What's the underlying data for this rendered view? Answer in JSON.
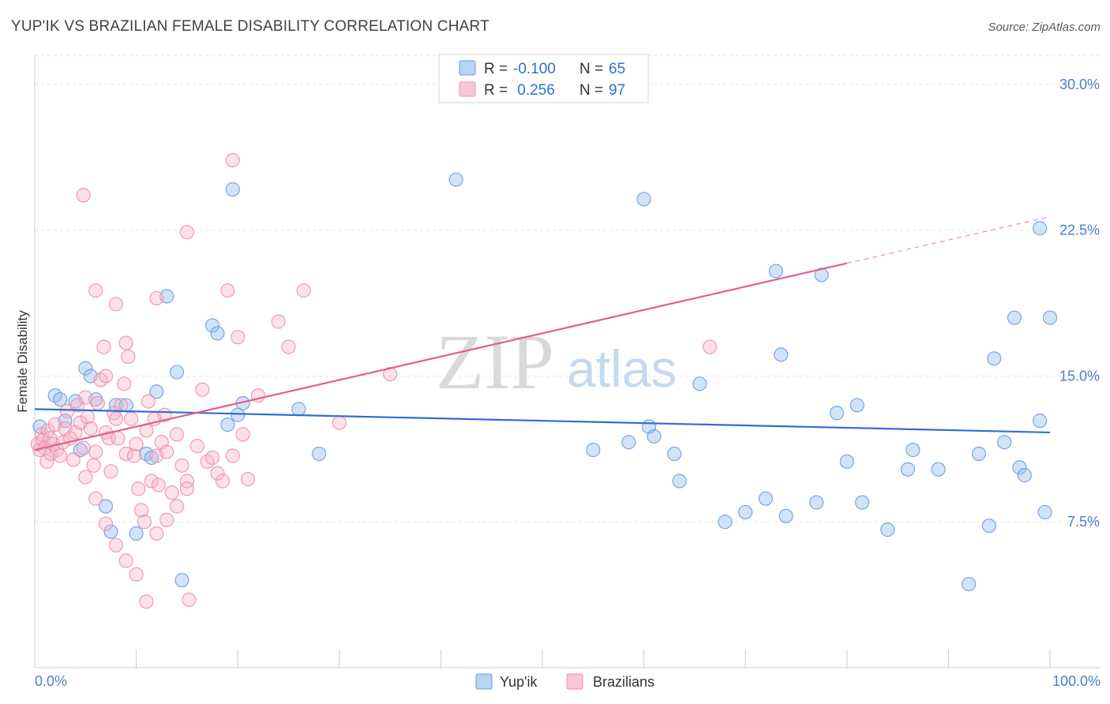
{
  "chart_data": {
    "type": "scatter",
    "title": "YUP'IK VS BRAZILIAN FEMALE DISABILITY CORRELATION CHART",
    "source": "Source: ZipAtlas.com",
    "xlabel": "",
    "ylabel": "Female Disability",
    "xlim": [
      0,
      100
    ],
    "ylim": [
      0,
      31.5
    ],
    "x_tick_labels": [
      "0.0%",
      "100.0%"
    ],
    "y_ticks": [
      7.5,
      15.0,
      22.5,
      30.0
    ],
    "y_tick_labels": [
      "7.5%",
      "15.0%",
      "22.5%",
      "30.0%"
    ],
    "watermark": {
      "zip": "ZIP",
      "atlas": "atlas"
    },
    "legend": {
      "rows": [
        {
          "r_label": "R = ",
          "r_value": "-0.100",
          "n_label": "N = ",
          "n_value": "65"
        },
        {
          "r_label": "R = ",
          "r_value": " 0.256",
          "n_label": "N = ",
          "n_value": "97"
        }
      ]
    },
    "series": [
      {
        "name": "Yup'ik",
        "color": "#8fb8ec",
        "stroke": "#6a9ee0",
        "line_color": "#2f6fd0",
        "trend": {
          "x0": 0,
          "y0": 13.3,
          "x1": 100,
          "y1": 12.1
        },
        "points": [
          [
            0.5,
            12.4
          ],
          [
            2,
            14
          ],
          [
            2.5,
            13.8
          ],
          [
            3,
            12.7
          ],
          [
            4,
            13.7
          ],
          [
            5,
            15.4
          ],
          [
            4.5,
            11.2
          ],
          [
            5.5,
            15
          ],
          [
            6,
            13.8
          ],
          [
            7,
            8.3
          ],
          [
            7.5,
            7
          ],
          [
            8,
            13.5
          ],
          [
            9,
            13.5
          ],
          [
            10,
            6.9
          ],
          [
            11,
            11
          ],
          [
            11.5,
            10.8
          ],
          [
            12,
            14.2
          ],
          [
            13,
            19.1
          ],
          [
            14,
            15.2
          ],
          [
            14.5,
            4.5
          ],
          [
            17.5,
            17.6
          ],
          [
            18,
            17.2
          ],
          [
            19,
            12.5
          ],
          [
            20,
            13
          ],
          [
            20.5,
            13.6
          ],
          [
            19.5,
            24.6
          ],
          [
            26,
            13.3
          ],
          [
            28,
            11
          ],
          [
            41.5,
            25.1
          ],
          [
            55,
            11.2
          ],
          [
            58.5,
            11.6
          ],
          [
            60,
            24.1
          ],
          [
            60.5,
            12.4
          ],
          [
            61,
            11.9
          ],
          [
            63,
            11
          ],
          [
            63.5,
            9.6
          ],
          [
            65.5,
            14.6
          ],
          [
            68,
            7.5
          ],
          [
            70,
            8
          ],
          [
            72,
            8.7
          ],
          [
            73,
            20.4
          ],
          [
            73.5,
            16.1
          ],
          [
            74,
            7.8
          ],
          [
            77,
            8.5
          ],
          [
            77.5,
            20.2
          ],
          [
            79,
            13.1
          ],
          [
            80,
            10.6
          ],
          [
            81,
            13.5
          ],
          [
            81.5,
            8.5
          ],
          [
            84,
            7.1
          ],
          [
            86,
            10.2
          ],
          [
            86.5,
            11.2
          ],
          [
            89,
            10.2
          ],
          [
            92,
            4.3
          ],
          [
            93,
            11
          ],
          [
            94,
            7.3
          ],
          [
            94.5,
            15.9
          ],
          [
            95.5,
            11.6
          ],
          [
            96.5,
            18
          ],
          [
            97,
            10.3
          ],
          [
            97.5,
            9.9
          ],
          [
            99,
            12.7
          ],
          [
            99.5,
            8
          ],
          [
            100,
            18
          ],
          [
            99,
            22.6
          ]
        ]
      },
      {
        "name": "Brazilians",
        "color": "#f6b3c8",
        "stroke": "#ef8fad",
        "line_color": "#e0608e",
        "trend": {
          "x0": 0,
          "y0": 11.2,
          "x1": 80,
          "y1": 20.8
        },
        "trend_dashed": {
          "x0": 80,
          "y0": 20.8,
          "x1": 100,
          "y1": 23.2
        },
        "points": [
          [
            0.3,
            11.5
          ],
          [
            0.5,
            11.2
          ],
          [
            0.7,
            12
          ],
          [
            0.8,
            11.7
          ],
          [
            1,
            11.3
          ],
          [
            1.2,
            10.6
          ],
          [
            1.3,
            12.2
          ],
          [
            1.5,
            11.8
          ],
          [
            1.6,
            11
          ],
          [
            1.8,
            11.5
          ],
          [
            2,
            12.5
          ],
          [
            2.2,
            11.2
          ],
          [
            2.5,
            10.9
          ],
          [
            2.8,
            11.6
          ],
          [
            3,
            12.3
          ],
          [
            3.2,
            13.2
          ],
          [
            3.5,
            11.8
          ],
          [
            3.8,
            10.7
          ],
          [
            4,
            12.1
          ],
          [
            4.2,
            13.5
          ],
          [
            4.5,
            12.6
          ],
          [
            4.8,
            11.3
          ],
          [
            5,
            13.9
          ],
          [
            5.2,
            12.9
          ],
          [
            5.5,
            12.3
          ],
          [
            5.8,
            10.4
          ],
          [
            6,
            11.1
          ],
          [
            6.2,
            13.6
          ],
          [
            6.5,
            14.8
          ],
          [
            6.8,
            16.5
          ],
          [
            7,
            12.1
          ],
          [
            7.3,
            11.8
          ],
          [
            7.5,
            10.1
          ],
          [
            7.8,
            13.1
          ],
          [
            8,
            12.8
          ],
          [
            8.2,
            11.8
          ],
          [
            8.5,
            13.5
          ],
          [
            8.8,
            14.6
          ],
          [
            9,
            11
          ],
          [
            9.2,
            16
          ],
          [
            9.5,
            12.8
          ],
          [
            9.8,
            10.9
          ],
          [
            10,
            11.5
          ],
          [
            10.2,
            9.2
          ],
          [
            10.5,
            8.1
          ],
          [
            10.8,
            7.5
          ],
          [
            11,
            12.2
          ],
          [
            11.2,
            13.7
          ],
          [
            11.5,
            9.6
          ],
          [
            11.8,
            12.8
          ],
          [
            12,
            10.9
          ],
          [
            12.2,
            9.4
          ],
          [
            12.5,
            11.6
          ],
          [
            12.8,
            13
          ],
          [
            13,
            11.1
          ],
          [
            13.5,
            9
          ],
          [
            14,
            12
          ],
          [
            14.5,
            10.4
          ],
          [
            15,
            9.6
          ],
          [
            15.2,
            3.5
          ],
          [
            16,
            11.4
          ],
          [
            16.5,
            14.3
          ],
          [
            17,
            10.6
          ],
          [
            17.5,
            10.8
          ],
          [
            18,
            10
          ],
          [
            18.5,
            9.6
          ],
          [
            19,
            19.4
          ],
          [
            19.5,
            10.9
          ],
          [
            20,
            17
          ],
          [
            20.5,
            12
          ],
          [
            22,
            14
          ],
          [
            24,
            17.8
          ],
          [
            25,
            16.5
          ],
          [
            26.5,
            19.4
          ],
          [
            30,
            12.6
          ],
          [
            35,
            15.1
          ],
          [
            4.8,
            24.3
          ],
          [
            6,
            19.4
          ],
          [
            8,
            18.7
          ],
          [
            9,
            16.7
          ],
          [
            12,
            19
          ],
          [
            15,
            22.4
          ],
          [
            19.5,
            26.1
          ],
          [
            7,
            15
          ],
          [
            5,
            9.8
          ],
          [
            6,
            8.7
          ],
          [
            7,
            7.4
          ],
          [
            8,
            6.3
          ],
          [
            9,
            5.5
          ],
          [
            10,
            4.8
          ],
          [
            11,
            3.4
          ],
          [
            12,
            6.9
          ],
          [
            13,
            7.6
          ],
          [
            14,
            8.3
          ],
          [
            15,
            9.2
          ],
          [
            66.5,
            16.5
          ],
          [
            21,
            9.7
          ]
        ]
      }
    ]
  }
}
